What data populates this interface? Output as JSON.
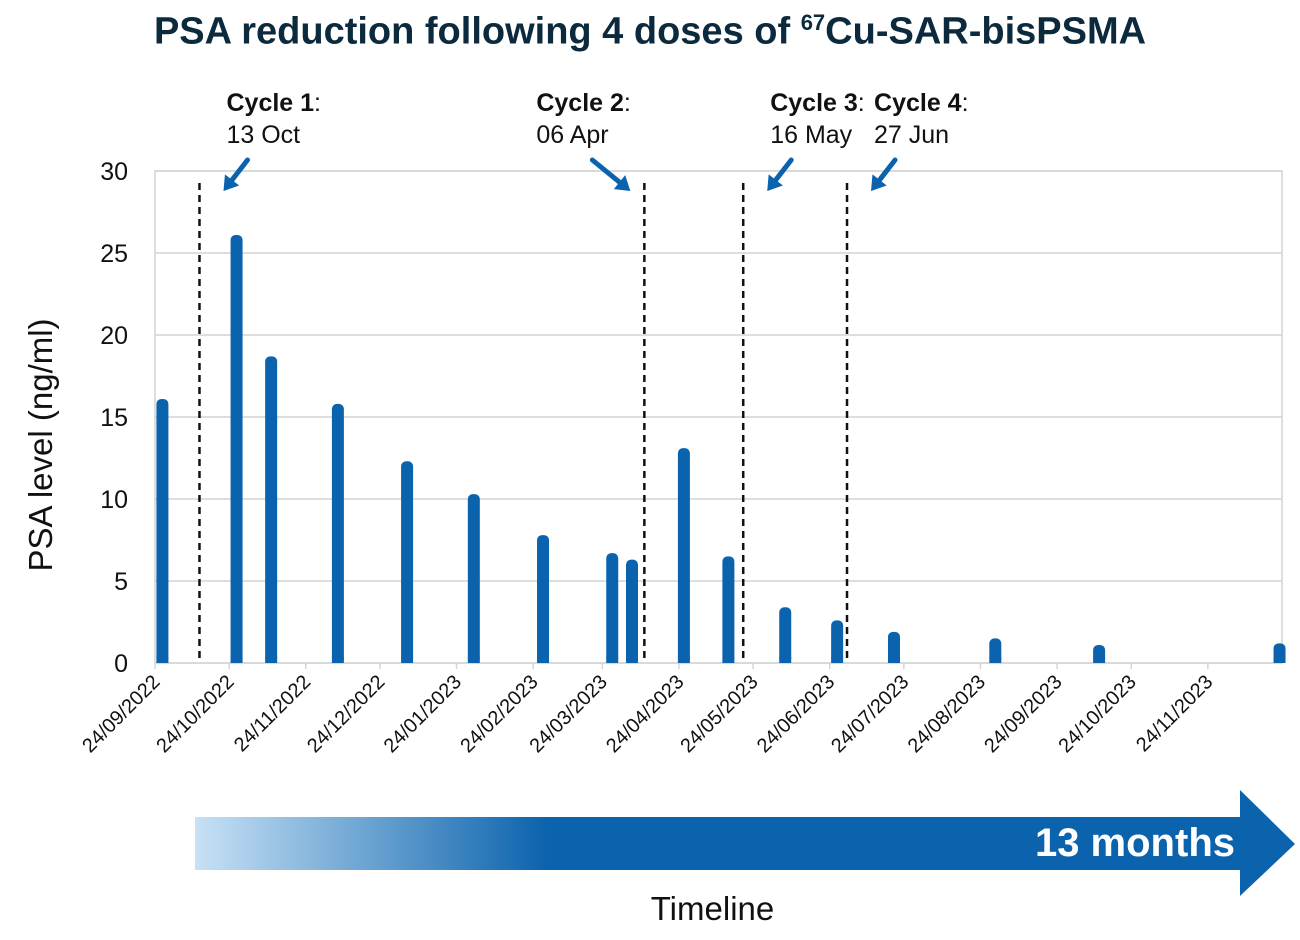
{
  "title": {
    "prefix": "PSA reduction following 4 doses of ",
    "superscript": "67",
    "suffix": "Cu-SAR-bisPSMA"
  },
  "timeline": {
    "label": "Timeline",
    "duration_label": "13 months"
  },
  "colors": {
    "bar": "#0c63ad",
    "arrow_dark": "#0c63ad",
    "arrow_light": "#c7e1f5",
    "grid": "#d4d4d4",
    "title": "#0b2a3d"
  },
  "chart_data": {
    "type": "bar",
    "title": "PSA reduction following 4 doses of 67Cu-SAR-bisPSMA",
    "xlabel": "Timeline",
    "ylabel": "PSA level (ng/ml)",
    "ylim": [
      0,
      30
    ],
    "yticks": [
      0,
      5,
      10,
      15,
      20,
      25,
      30
    ],
    "xrange": [
      "2022-09-24",
      "2023-12-24"
    ],
    "xticks": [
      "24/09/2022",
      "24/10/2022",
      "24/11/2022",
      "24/12/2022",
      "24/01/2023",
      "24/02/2023",
      "24/03/2023",
      "24/04/2023",
      "24/05/2023",
      "24/06/2023",
      "24/07/2023",
      "24/08/2023",
      "24/09/2023",
      "24/10/2023",
      "24/11/2023"
    ],
    "series": [
      {
        "name": "PSA level",
        "points": [
          {
            "date": "2022-09-27",
            "value": 16.1
          },
          {
            "date": "2022-10-27",
            "value": 26.1
          },
          {
            "date": "2022-11-10",
            "value": 18.7
          },
          {
            "date": "2022-12-07",
            "value": 15.8
          },
          {
            "date": "2023-01-04",
            "value": 12.3
          },
          {
            "date": "2023-01-31",
            "value": 10.3
          },
          {
            "date": "2023-02-28",
            "value": 7.8
          },
          {
            "date": "2023-03-28",
            "value": 6.7
          },
          {
            "date": "2023-04-05",
            "value": 6.3
          },
          {
            "date": "2023-04-26",
            "value": 13.1
          },
          {
            "date": "2023-05-14",
            "value": 6.5
          },
          {
            "date": "2023-06-06",
            "value": 3.4
          },
          {
            "date": "2023-06-27",
            "value": 2.6
          },
          {
            "date": "2023-07-20",
            "value": 1.9
          },
          {
            "date": "2023-08-30",
            "value": 1.5
          },
          {
            "date": "2023-10-11",
            "value": 1.1
          },
          {
            "date": "2023-12-23",
            "value": 1.2
          }
        ]
      }
    ],
    "annotations": [
      {
        "name": "Cycle 1",
        "date_label": "13 Oct",
        "line_date": "2022-10-12",
        "arrow": "from-right"
      },
      {
        "name": "Cycle 2",
        "date_label": "06 Apr",
        "line_date": "2023-04-10",
        "arrow": "from-left"
      },
      {
        "name": "Cycle 3",
        "date_label": "16 May",
        "line_date": "2023-05-20",
        "arrow": "from-right"
      },
      {
        "name": "Cycle 4",
        "date_label": "27 Jun",
        "line_date": "2023-07-01",
        "arrow": "from-right"
      }
    ]
  }
}
